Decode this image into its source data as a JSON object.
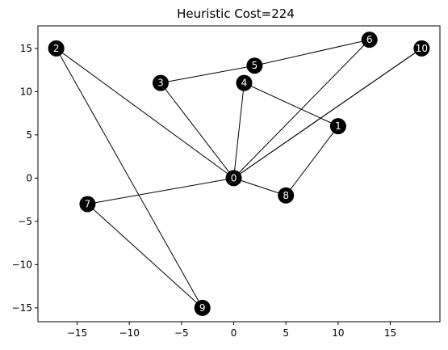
{
  "chart_data": {
    "type": "scatter",
    "title": "Heuristic Cost=224",
    "xlabel": "",
    "ylabel": "",
    "xlim": [
      -18.75,
      19.75
    ],
    "ylim": [
      -16.6,
      17.6
    ],
    "xticks": [
      -15,
      -10,
      -5,
      0,
      5,
      10,
      15
    ],
    "yticks": [
      -15,
      -10,
      -5,
      0,
      5,
      10,
      15
    ],
    "xtick_labels": [
      "−15",
      "−10",
      "−5",
      "0",
      "5",
      "10",
      "15"
    ],
    "ytick_labels": [
      "−15",
      "−10",
      "−5",
      "0",
      "5",
      "10",
      "15"
    ],
    "grid": false,
    "node_color": "#000000",
    "label_color": "#ffffff",
    "edge_color": "#000000",
    "nodes": [
      {
        "id": "0",
        "x": 0,
        "y": 0
      },
      {
        "id": "1",
        "x": 10,
        "y": 6
      },
      {
        "id": "2",
        "x": -17,
        "y": 15
      },
      {
        "id": "3",
        "x": -7,
        "y": 11
      },
      {
        "id": "4",
        "x": 1,
        "y": 11
      },
      {
        "id": "5",
        "x": 2,
        "y": 13
      },
      {
        "id": "6",
        "x": 13,
        "y": 16
      },
      {
        "id": "7",
        "x": -14,
        "y": -3
      },
      {
        "id": "8",
        "x": 5,
        "y": -2
      },
      {
        "id": "9",
        "x": -3,
        "y": -15
      },
      {
        "id": "10",
        "x": 18,
        "y": 15
      }
    ],
    "edges": [
      [
        "0",
        "2"
      ],
      [
        "0",
        "3"
      ],
      [
        "0",
        "4"
      ],
      [
        "0",
        "6"
      ],
      [
        "0",
        "10"
      ],
      [
        "0",
        "10"
      ],
      [
        "0",
        "7"
      ],
      [
        "0",
        "8"
      ],
      [
        "8",
        "1"
      ],
      [
        "1",
        "4"
      ],
      [
        "3",
        "5"
      ],
      [
        "5",
        "6"
      ],
      [
        "2",
        "9"
      ],
      [
        "7",
        "9"
      ]
    ]
  }
}
